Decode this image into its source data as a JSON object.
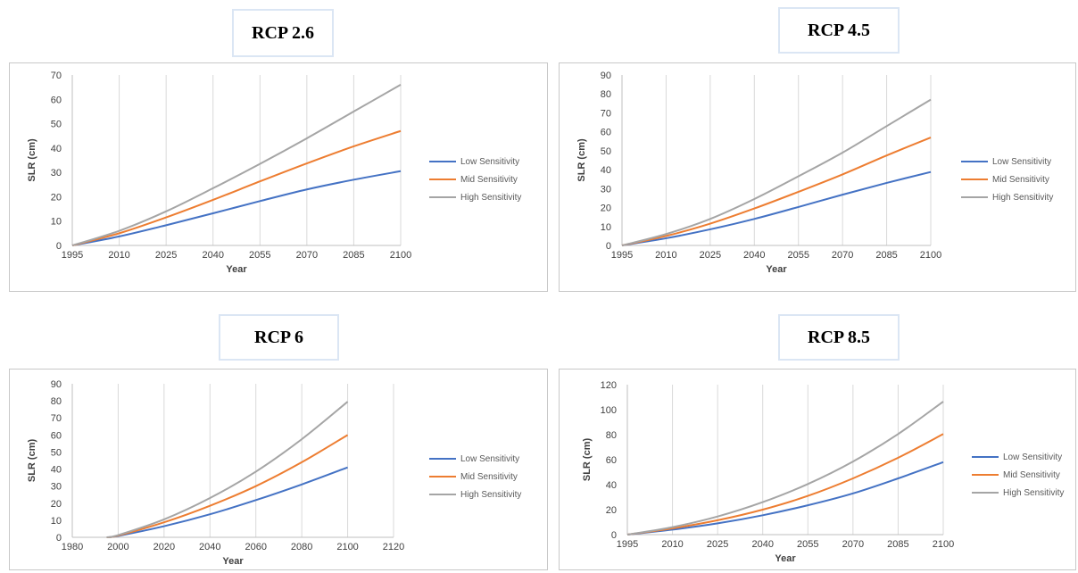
{
  "xlabel": "Year",
  "ylabel": "SLR (cm)",
  "colors": {
    "low": "#4472c4",
    "mid": "#ed7d31",
    "high": "#a5a5a5"
  },
  "chart_data": [
    {
      "type": "line",
      "title": "RCP 2.6",
      "xlabel": "Year",
      "ylabel": "SLR (cm)",
      "xlim": [
        1995,
        2100
      ],
      "ylim": [
        0,
        70
      ],
      "xticks": [
        1995,
        2010,
        2025,
        2040,
        2055,
        2070,
        2085,
        2100
      ],
      "yticks": [
        0,
        10,
        20,
        30,
        40,
        50,
        60,
        70
      ],
      "x": [
        1995,
        2010,
        2025,
        2040,
        2055,
        2070,
        2085,
        2100
      ],
      "series": [
        {
          "name": "Low Sensitivity",
          "color": "#4472c4",
          "values": [
            0,
            3.7,
            8.3,
            13.2,
            18.2,
            23.0,
            27.0,
            30.5
          ]
        },
        {
          "name": "Mid Sensitivity",
          "color": "#ed7d31",
          "values": [
            0,
            5.0,
            11.5,
            18.7,
            26.3,
            33.7,
            40.7,
            47.0
          ]
        },
        {
          "name": "High Sensitivity",
          "color": "#a5a5a5",
          "values": [
            0,
            6.0,
            14.0,
            23.5,
            33.5,
            44.0,
            55.0,
            66.0
          ]
        }
      ],
      "legend": "right",
      "grid": "vertical"
    },
    {
      "type": "line",
      "title": "RCP 4.5",
      "xlabel": "Year",
      "ylabel": "SLR (cm)",
      "xlim": [
        1995,
        2100
      ],
      "ylim": [
        0,
        90
      ],
      "xticks": [
        1995,
        2010,
        2025,
        2040,
        2055,
        2070,
        2085,
        2100
      ],
      "yticks": [
        0,
        10,
        20,
        30,
        40,
        50,
        60,
        70,
        80,
        90
      ],
      "x": [
        1995,
        2010,
        2025,
        2040,
        2055,
        2070,
        2085,
        2100
      ],
      "series": [
        {
          "name": "Low Sensitivity",
          "color": "#4472c4",
          "values": [
            0,
            3.8,
            8.5,
            14.0,
            20.3,
            26.8,
            33.0,
            38.8
          ]
        },
        {
          "name": "Mid Sensitivity",
          "color": "#ed7d31",
          "values": [
            0,
            5.0,
            11.5,
            19.5,
            28.3,
            37.5,
            47.5,
            57.0
          ]
        },
        {
          "name": "High Sensitivity",
          "color": "#a5a5a5",
          "values": [
            0,
            6.0,
            14.0,
            24.5,
            36.5,
            49.0,
            63.0,
            77.0
          ]
        }
      ],
      "legend": "right",
      "grid": "vertical"
    },
    {
      "type": "line",
      "title": "RCP 6",
      "xlabel": "Year",
      "ylabel": "SLR (cm)",
      "xlim": [
        1980,
        2120
      ],
      "ylim": [
        0,
        90
      ],
      "xticks": [
        1980,
        2000,
        2020,
        2040,
        2060,
        2080,
        2100,
        2120
      ],
      "yticks": [
        0,
        10,
        20,
        30,
        40,
        50,
        60,
        70,
        80,
        90
      ],
      "x": [
        1995,
        2000,
        2020,
        2040,
        2060,
        2080,
        2100
      ],
      "series": [
        {
          "name": "Low Sensitivity",
          "color": "#4472c4",
          "values": [
            0,
            0.8,
            6.5,
            13.5,
            21.8,
            31.0,
            41.0
          ]
        },
        {
          "name": "Mid Sensitivity",
          "color": "#ed7d31",
          "values": [
            0,
            1.0,
            8.8,
            18.5,
            30.0,
            44.0,
            60.0
          ]
        },
        {
          "name": "High Sensitivity",
          "color": "#a5a5a5",
          "values": [
            0,
            1.3,
            10.5,
            23.0,
            38.5,
            57.5,
            79.5
          ]
        }
      ],
      "legend": "right",
      "grid": "vertical"
    },
    {
      "type": "line",
      "title": "RCP 8.5",
      "xlabel": "Year",
      "ylabel": "SLR (cm)",
      "xlim": [
        1995,
        2100
      ],
      "ylim": [
        0,
        120
      ],
      "xticks": [
        1995,
        2010,
        2025,
        2040,
        2055,
        2070,
        2085,
        2100
      ],
      "yticks": [
        0,
        20,
        40,
        60,
        80,
        100,
        120
      ],
      "x": [
        1995,
        2010,
        2025,
        2040,
        2055,
        2070,
        2085,
        2100
      ],
      "series": [
        {
          "name": "Low Sensitivity",
          "color": "#4472c4",
          "values": [
            0,
            4.0,
            9.0,
            15.5,
            23.5,
            33.0,
            45.0,
            58.0
          ]
        },
        {
          "name": "Mid Sensitivity",
          "color": "#ed7d31",
          "values": [
            0,
            5.0,
            11.5,
            20.0,
            31.0,
            45.0,
            61.5,
            80.5
          ]
        },
        {
          "name": "High Sensitivity",
          "color": "#a5a5a5",
          "values": [
            0,
            6.0,
            14.5,
            26.0,
            40.5,
            58.5,
            80.5,
            106.5
          ]
        }
      ],
      "legend": "right",
      "grid": "vertical"
    }
  ]
}
